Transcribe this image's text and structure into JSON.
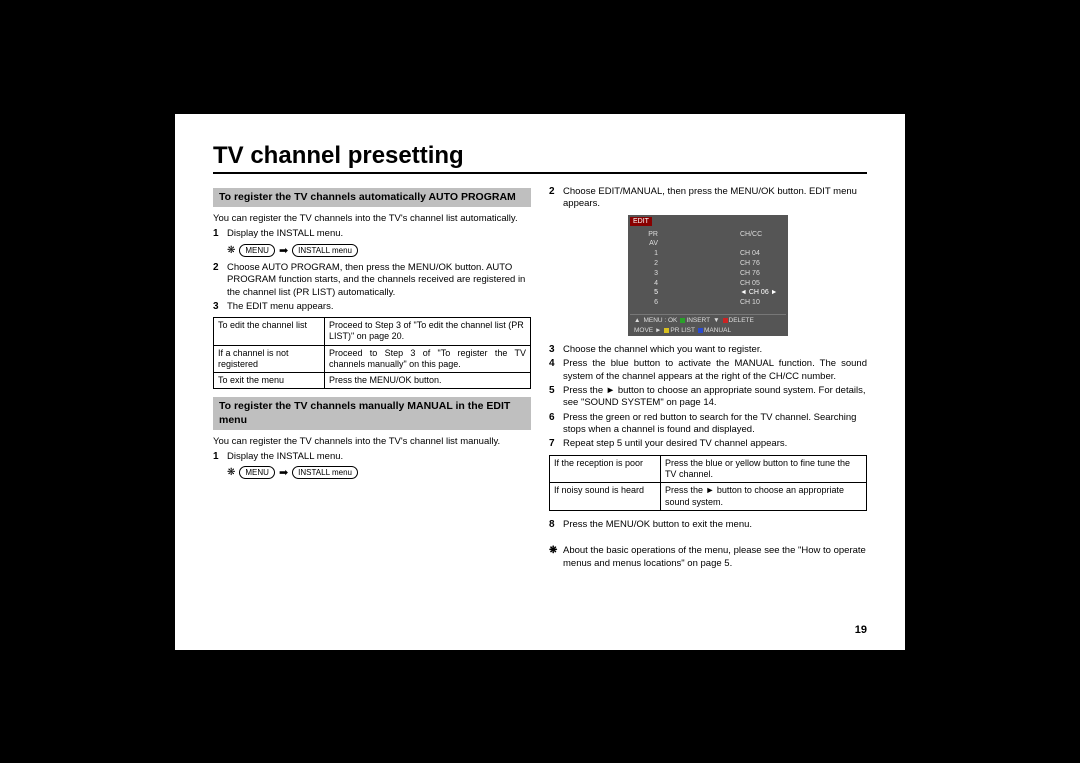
{
  "title": "TV channel presetting",
  "page_number": "19",
  "asterisk": "❋",
  "arrow": "➡",
  "play_btn": "►",
  "left": {
    "sec1_head": "To register the TV channels automatically AUTO PROGRAM",
    "sec1_intro": "You can register the TV channels into the TV's channel list automatically.",
    "s1_n": "1",
    "s1_t": "Display the INSTALL menu.",
    "menu_btn": "MENU",
    "install_btn": "INSTALL menu",
    "s2_n": "2",
    "s2_t": "Choose AUTO PROGRAM, then press the MENU/OK button. AUTO PROGRAM function starts, and the channels received are registered in the channel list (PR LIST) automatically.",
    "s3_n": "3",
    "s3_t": "The EDIT menu appears.",
    "table": {
      "r1a": "To edit the channel list",
      "r1b": "Proceed to Step 3 of \"To edit the channel list (PR LIST)\" on page 20.",
      "r2a": "If a channel is not registered",
      "r2b": "Proceed to Step 3 of \"To register the TV channels manually\" on this page.",
      "r3a": "To exit the menu",
      "r3b": "Press the MENU/OK button."
    },
    "sec2_head": "To register the TV channels manually MANUAL in the EDIT menu",
    "sec2_intro": "You can register the TV channels into the TV's channel list manually.",
    "m1_n": "1",
    "m1_t": "Display the INSTALL menu."
  },
  "right": {
    "r2_n": "2",
    "r2_t": "Choose EDIT/MANUAL, then press the MENU/OK button. EDIT menu appears.",
    "osd": {
      "title": "EDIT",
      "head_pr": "PR",
      "head_ch": "CH/CC",
      "row_av": "AV",
      "rows": [
        {
          "pr": "1",
          "ch": "CH 04"
        },
        {
          "pr": "2",
          "ch": "CH 76"
        },
        {
          "pr": "3",
          "ch": "CH 76"
        },
        {
          "pr": "4",
          "ch": "CH 05"
        },
        {
          "pr": "5",
          "ch": "CH 06",
          "sel": true
        },
        {
          "pr": "6",
          "ch": "CH 10"
        }
      ],
      "foot": {
        "menu": "MENU : OK",
        "insert": "INSERT",
        "delete": "DELETE",
        "move": "MOVE",
        "prlist": "PR LIST",
        "manual": "MANUAL"
      },
      "colors": {
        "green": "#2aa02a",
        "red": "#cc2222",
        "yellow": "#d8c020",
        "blue": "#2a4ad0",
        "white": "#ffffff"
      }
    },
    "r3_n": "3",
    "r3_t": "Choose the channel which you want to register.",
    "r4_n": "4",
    "r4_t": "Press the blue button to activate the MANUAL function. The sound system of the channel appears at the right of the CH/CC number.",
    "r5_n": "5",
    "r5_t1": "Press the ",
    "r5_t2": " button to choose an appropriate sound system. For details, see \"SOUND SYSTEM\" on page 14.",
    "r6_n": "6",
    "r6_t": "Press the green or red button to search for the TV channel. Searching stops when a channel is found and displayed.",
    "r7_n": "7",
    "r7_t": "Repeat step 5 until your desired TV channel appears.",
    "table2": {
      "r1a": "If the reception is poor",
      "r1b": "Press the blue or yellow button to fine tune the TV channel.",
      "r2a": "If noisy sound is heard",
      "r2b1": "Press the ",
      "r2b2": " button to choose an appropriate sound system."
    },
    "r8_n": "8",
    "r8_t": "Press the MENU/OK button to exit the menu.",
    "footnote": "About the basic operations of the menu, please see the \"How to operate menus and menus locations\" on page 5."
  }
}
